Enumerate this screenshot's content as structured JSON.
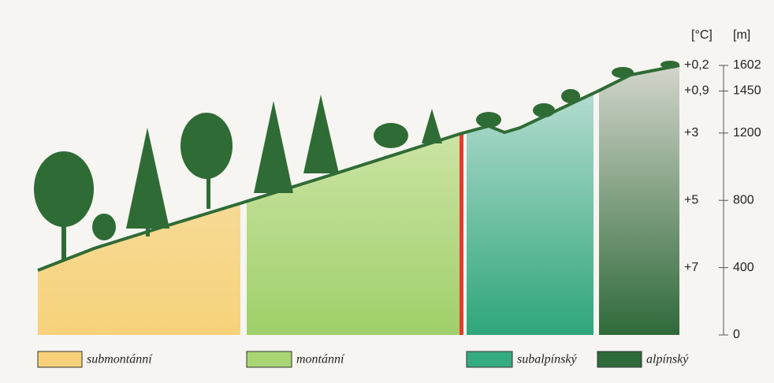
{
  "axes": {
    "temperature_label": "[°C]",
    "altitude_label": "[m]",
    "altitude_ticks": [
      1602,
      1450,
      1200,
      800,
      400,
      0
    ],
    "temperatures": [
      "+0,2",
      "+0,9",
      "+3",
      "+5",
      "+7"
    ]
  },
  "legend": [
    "submontánní",
    "montánní",
    "subalpínský",
    "alpínský"
  ]
}
